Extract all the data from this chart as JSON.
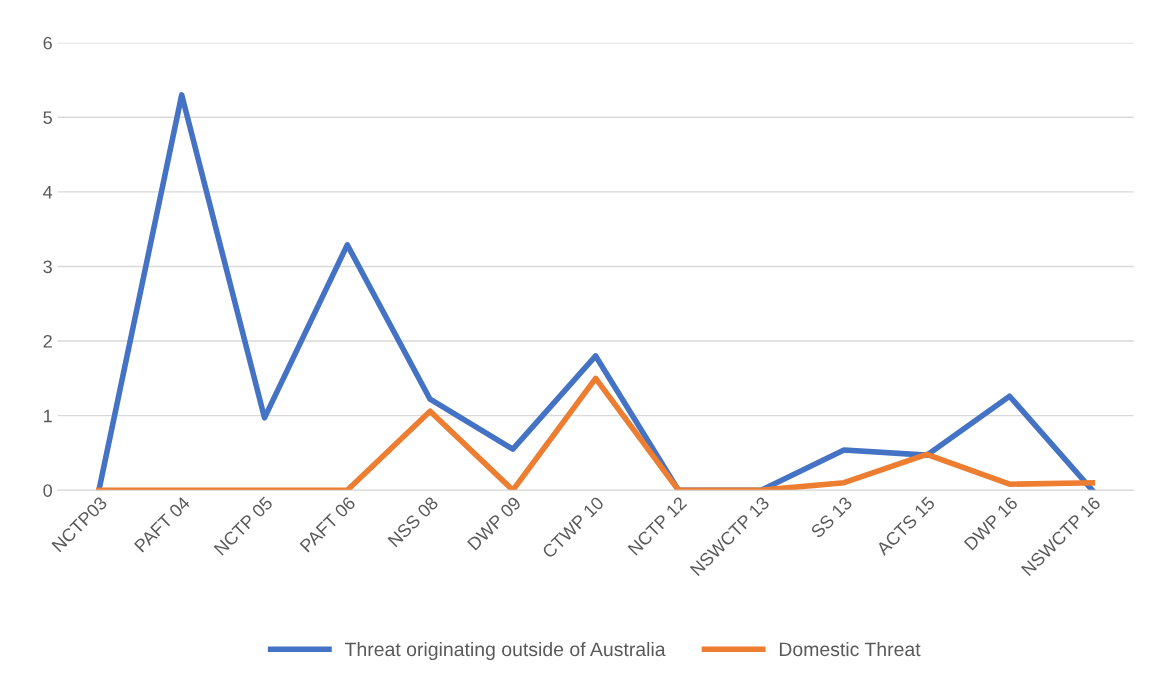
{
  "chart_data": {
    "type": "line",
    "categories": [
      "NCTP03",
      "PAFT 04",
      "NCTP 05",
      "PAFT 06",
      "NSS 08",
      "DWP 09",
      "CTWP 10",
      "NCTP 12",
      "NSWCTP 13",
      "SS 13",
      "ACTS 15",
      "DWP 16",
      "NSWCTP 16"
    ],
    "series": [
      {
        "name": "Threat originating outside of Australia",
        "color": "#4472c4",
        "values": [
          0,
          5.3,
          0.97,
          3.29,
          1.22,
          0.55,
          1.8,
          0,
          0,
          0.54,
          0.47,
          1.26,
          0
        ]
      },
      {
        "name": "Domestic Threat",
        "color": "#ed7d31",
        "values": [
          0,
          0,
          0,
          0,
          1.06,
          0,
          1.5,
          0,
          0,
          0.1,
          0.48,
          0.08,
          0.1
        ]
      }
    ],
    "ylim": [
      0,
      6
    ],
    "yticks": [
      0,
      1,
      2,
      3,
      4,
      5,
      6
    ],
    "grid": "y",
    "legend": "bottom",
    "marker": "none",
    "line_style": "solid"
  }
}
